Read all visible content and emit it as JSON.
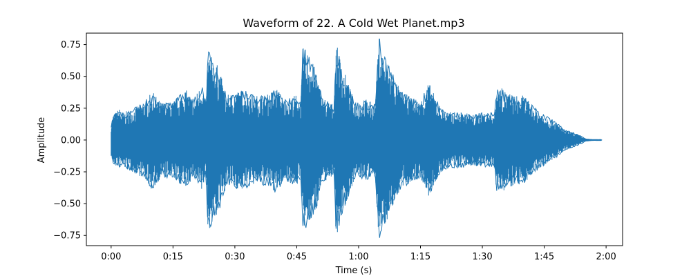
{
  "chart_data": {
    "type": "area",
    "title": "Waveform of 22. A Cold Wet Planet.mp3",
    "xlabel": "Time (s)",
    "ylabel": "Amplitude",
    "xlim": [
      -6,
      124
    ],
    "ylim": [
      -0.83,
      0.84
    ],
    "grid": false,
    "legend": "none",
    "series_color": "#1f77b4",
    "x_ticks": [
      {
        "value": 0,
        "label": "0:00"
      },
      {
        "value": 15,
        "label": "0:15"
      },
      {
        "value": 30,
        "label": "0:30"
      },
      {
        "value": 45,
        "label": "0:45"
      },
      {
        "value": 60,
        "label": "1:00"
      },
      {
        "value": 75,
        "label": "1:15"
      },
      {
        "value": 90,
        "label": "1:30"
      },
      {
        "value": 105,
        "label": "1:45"
      },
      {
        "value": 120,
        "label": "2:00"
      }
    ],
    "y_ticks": [
      {
        "value": 0.75,
        "label": "0.75"
      },
      {
        "value": 0.5,
        "label": "0.50"
      },
      {
        "value": 0.25,
        "label": "0.25"
      },
      {
        "value": 0.0,
        "label": "0.00"
      },
      {
        "value": -0.25,
        "label": "−0.25"
      },
      {
        "value": -0.5,
        "label": "−0.50"
      },
      {
        "value": -0.75,
        "label": "−0.75"
      }
    ],
    "envelope": {
      "x": [
        0,
        0.5,
        2,
        3,
        5,
        8,
        10,
        12,
        15,
        18,
        20,
        22,
        23,
        23.5,
        24.5,
        26,
        28,
        30,
        32,
        35,
        38,
        40,
        42,
        45,
        46,
        46.5,
        47.5,
        49,
        50,
        51,
        53,
        54,
        54.5,
        55,
        56,
        57,
        58,
        59,
        60,
        62,
        63,
        64,
        65,
        65.5,
        66.5,
        68,
        70,
        72,
        74,
        75,
        77,
        78,
        80,
        82,
        85,
        88,
        90,
        93,
        93.5,
        95,
        98,
        100,
        102,
        104,
        106,
        108,
        110,
        112,
        114,
        115,
        116,
        117,
        118,
        119
      ],
      "upper": [
        0.13,
        0.2,
        0.25,
        0.22,
        0.24,
        0.3,
        0.38,
        0.3,
        0.3,
        0.4,
        0.32,
        0.45,
        0.3,
        0.71,
        0.65,
        0.58,
        0.35,
        0.38,
        0.4,
        0.35,
        0.36,
        0.42,
        0.32,
        0.36,
        0.32,
        0.73,
        0.71,
        0.6,
        0.52,
        0.35,
        0.3,
        0.28,
        0.74,
        0.72,
        0.58,
        0.5,
        0.4,
        0.31,
        0.3,
        0.32,
        0.3,
        0.29,
        0.82,
        0.72,
        0.66,
        0.55,
        0.4,
        0.35,
        0.32,
        0.3,
        0.46,
        0.38,
        0.25,
        0.22,
        0.22,
        0.2,
        0.22,
        0.22,
        0.43,
        0.4,
        0.35,
        0.35,
        0.28,
        0.22,
        0.18,
        0.14,
        0.08,
        0.06,
        0.03,
        0.01,
        0.006,
        0.004,
        0.004,
        0.004
      ],
      "lower": [
        -0.13,
        -0.2,
        -0.22,
        -0.22,
        -0.25,
        -0.3,
        -0.4,
        -0.3,
        -0.3,
        -0.38,
        -0.3,
        -0.42,
        -0.28,
        -0.72,
        -0.66,
        -0.58,
        -0.35,
        -0.38,
        -0.4,
        -0.35,
        -0.36,
        -0.42,
        -0.32,
        -0.36,
        -0.32,
        -0.73,
        -0.7,
        -0.6,
        -0.52,
        -0.35,
        -0.3,
        -0.28,
        -0.74,
        -0.72,
        -0.58,
        -0.5,
        -0.4,
        -0.31,
        -0.3,
        -0.32,
        -0.3,
        -0.29,
        -0.82,
        -0.72,
        -0.66,
        -0.55,
        -0.4,
        -0.35,
        -0.32,
        -0.3,
        -0.46,
        -0.38,
        -0.25,
        -0.22,
        -0.22,
        -0.2,
        -0.22,
        -0.22,
        -0.43,
        -0.4,
        -0.35,
        -0.35,
        -0.28,
        -0.22,
        -0.18,
        -0.14,
        -0.08,
        -0.06,
        -0.03,
        -0.01,
        -0.006,
        -0.004,
        -0.004,
        -0.004
      ]
    }
  }
}
